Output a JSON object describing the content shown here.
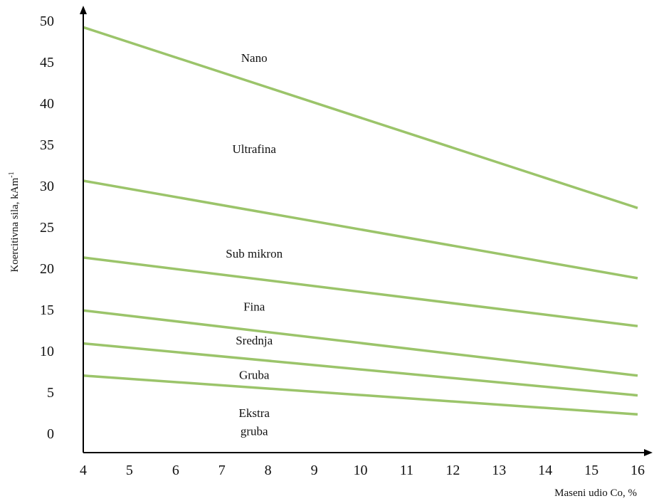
{
  "chart_data": {
    "type": "line",
    "xlabel": "Maseni udio Co, %",
    "ylabel_main": "Koercitivna sila, kAm",
    "ylabel_sup": "-1",
    "x_ticks": [
      "4",
      "5",
      "6",
      "7",
      "8",
      "9",
      "10",
      "11",
      "12",
      "13",
      "14",
      "15",
      "16"
    ],
    "y_ticks": [
      "0",
      "5",
      "10",
      "15",
      "20",
      "25",
      "30",
      "35",
      "40",
      "45",
      "50"
    ],
    "xlim": [
      4,
      16
    ],
    "ylim": [
      0,
      50
    ],
    "grid": false,
    "line_color": "#9bc46a",
    "series": [
      {
        "x": [
          4,
          16
        ],
        "y": [
          49.2,
          27.3
        ]
      },
      {
        "x": [
          4,
          16
        ],
        "y": [
          30.6,
          18.8
        ]
      },
      {
        "x": [
          4,
          16
        ],
        "y": [
          21.3,
          13.0
        ]
      },
      {
        "x": [
          4,
          16
        ],
        "y": [
          14.9,
          7.0
        ]
      },
      {
        "x": [
          4,
          16
        ],
        "y": [
          10.9,
          4.6
        ]
      },
      {
        "x": [
          4,
          16
        ],
        "y": [
          7.0,
          2.3
        ]
      }
    ],
    "region_labels": [
      {
        "text": "Nano",
        "x": 7.7,
        "y": 45.5
      },
      {
        "text": "Ultrafina",
        "x": 7.7,
        "y": 34.5
      },
      {
        "text": "Sub mikron",
        "x": 7.7,
        "y": 21.8
      },
      {
        "text": "Fina",
        "x": 7.7,
        "y": 15.4
      },
      {
        "text": "Srednja",
        "x": 7.7,
        "y": 11.3
      },
      {
        "text": "Gruba",
        "x": 7.7,
        "y": 7.1
      },
      {
        "text": "Ekstra",
        "x": 7.7,
        "y": 2.5
      },
      {
        "text": "gruba",
        "x": 7.7,
        "y": 0.3
      }
    ]
  }
}
